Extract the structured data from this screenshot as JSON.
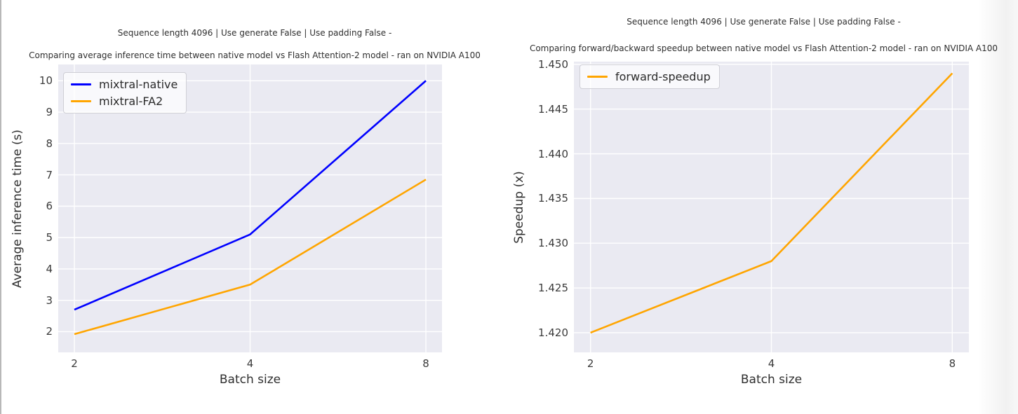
{
  "page": {
    "background_color": "#ffffff",
    "plot_background_color": "#eaeaf2",
    "gridline_color": "#ffffff"
  },
  "chart_data": [
    {
      "type": "line",
      "suptitle": "Sequence length 4096 | Use generate False | Use padding False -",
      "title": "Comparing average inference time between native model vs Flash Attention-2 model - ran on NVIDIA A100",
      "xlabel": "Batch size",
      "ylabel": "Average inference time (s)",
      "categories": [
        2,
        4,
        8
      ],
      "xtick_labels": [
        "2",
        "4",
        "8"
      ],
      "x_scale": "log2-even-spacing",
      "series": [
        {
          "name": "mixtral-native",
          "color": "#0000ff",
          "values": [
            2.7,
            5.1,
            10.0
          ]
        },
        {
          "name": "mixtral-FA2",
          "color": "#ffa500",
          "values": [
            1.92,
            3.5,
            6.85
          ]
        }
      ],
      "ylim": [
        1.34,
        10.52
      ],
      "yticks": [
        2,
        3,
        4,
        5,
        6,
        7,
        8,
        9,
        10
      ],
      "ytick_labels": [
        "2",
        "3",
        "4",
        "5",
        "6",
        "7",
        "8",
        "9",
        "10"
      ],
      "grid": true,
      "legend_position": "upper left"
    },
    {
      "type": "line",
      "suptitle": "Sequence length 4096 | Use generate False | Use padding False -",
      "title": "Comparing forward/backward speedup between native model vs Flash Attention-2 model - ran on NVIDIA A100",
      "xlabel": "Batch size",
      "ylabel": "Speedup (x)",
      "categories": [
        2,
        4,
        8
      ],
      "xtick_labels": [
        "2",
        "4",
        "8"
      ],
      "x_scale": "log2-even-spacing",
      "series": [
        {
          "name": "forward-speedup",
          "color": "#ffa500",
          "values": [
            1.42,
            1.428,
            1.449
          ]
        }
      ],
      "ylim": [
        1.4178,
        1.4503
      ],
      "yticks": [
        1.42,
        1.425,
        1.43,
        1.435,
        1.44,
        1.445,
        1.45
      ],
      "ytick_labels": [
        "1.420",
        "1.425",
        "1.430",
        "1.435",
        "1.440",
        "1.445",
        "1.450"
      ],
      "grid": true,
      "legend_position": "upper left"
    }
  ]
}
